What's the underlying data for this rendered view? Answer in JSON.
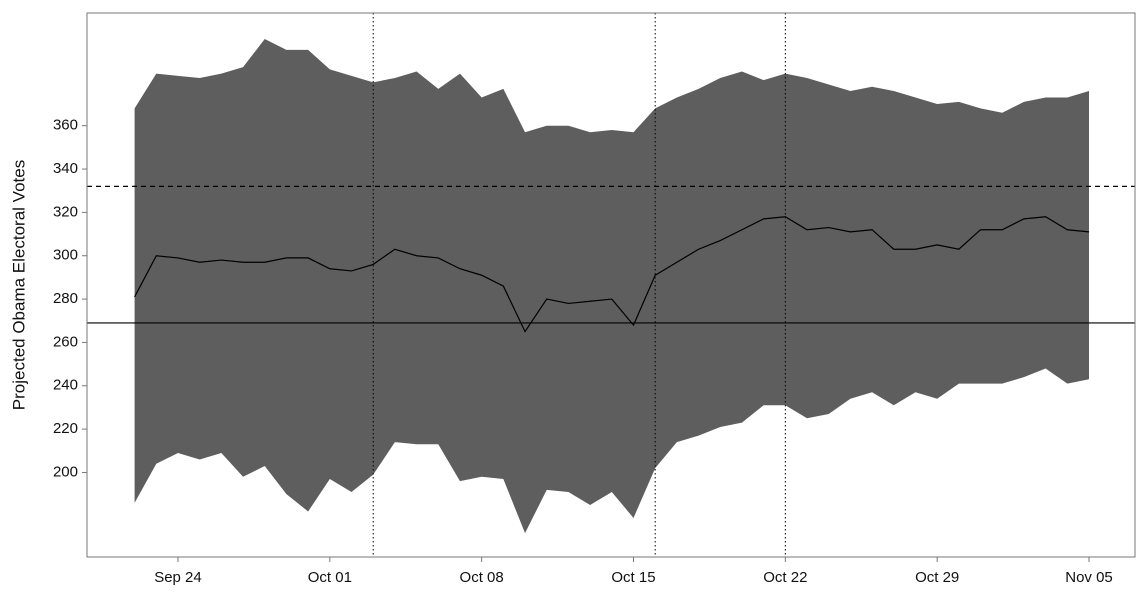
{
  "chart_data": {
    "type": "band",
    "y_label": "Projected Obama Electoral Votes",
    "categories": [
      null,
      null,
      "Sep 24",
      null,
      null,
      null,
      null,
      null,
      null,
      "Oct 01",
      null,
      null,
      null,
      null,
      null,
      null,
      "Oct 08",
      null,
      null,
      null,
      null,
      null,
      null,
      "Oct 15",
      null,
      null,
      null,
      null,
      null,
      null,
      "Oct 22",
      null,
      null,
      null,
      null,
      null,
      null,
      "Oct 29",
      null,
      null,
      null,
      null,
      null,
      null,
      "Nov 05"
    ],
    "upper": [
      368,
      384,
      383,
      382,
      384,
      387,
      400,
      395,
      395,
      386,
      383,
      380,
      382,
      385,
      377,
      384,
      373,
      377,
      357,
      360,
      360,
      357,
      358,
      357,
      368,
      373,
      377,
      382,
      385,
      381,
      384,
      382,
      379,
      376,
      378,
      376,
      373,
      370,
      371,
      368,
      366,
      371,
      373,
      373,
      376
    ],
    "lower": [
      186,
      204,
      209,
      206,
      209,
      198,
      203,
      190,
      182,
      197,
      191,
      199,
      214,
      213,
      213,
      196,
      198,
      197,
      172,
      192,
      191,
      185,
      191,
      179,
      202,
      214,
      217,
      221,
      223,
      231,
      231,
      225,
      227,
      234,
      237,
      231,
      237,
      234,
      241,
      241,
      241,
      244,
      248,
      241,
      243
    ],
    "values": [
      281,
      300,
      299,
      297,
      298,
      297,
      297,
      299,
      299,
      294,
      293,
      296,
      303,
      300,
      299,
      294,
      291,
      286,
      265,
      280,
      278,
      279,
      280,
      268,
      291,
      297,
      303,
      307,
      312,
      317,
      318,
      312,
      313,
      311,
      312,
      303,
      303,
      305,
      303,
      312,
      312,
      317,
      318,
      312,
      311
    ],
    "color": "#5e5e5e",
    "line_color": "#000000",
    "ylim": [
      161,
      412
    ],
    "yticks": [
      200,
      220,
      240,
      260,
      280,
      300,
      320,
      340,
      360
    ],
    "hlines": [
      {
        "value": 332,
        "style": "dashed"
      },
      {
        "value": 269,
        "style": "solid"
      }
    ],
    "vlines": [
      11,
      24,
      30
    ]
  }
}
